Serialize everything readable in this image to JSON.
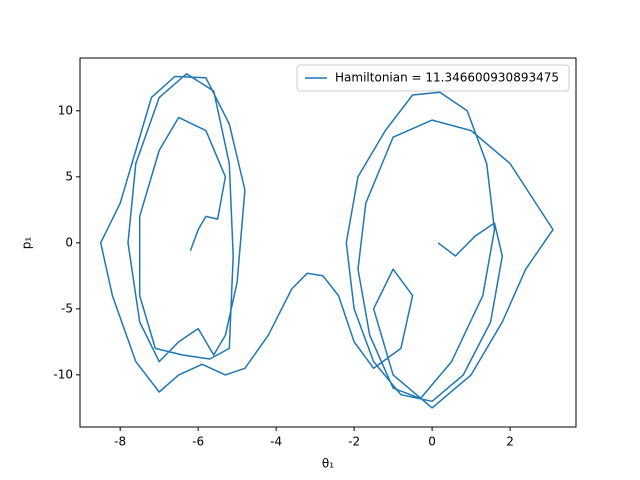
{
  "chart_data": {
    "type": "line",
    "xlabel": "θ₁",
    "ylabel": "p₁",
    "x": [
      0.15,
      0.6,
      1.1,
      1.6,
      1.8,
      1.5,
      0.8,
      0,
      -0.8,
      -1.5,
      -2,
      -2.2,
      -1.9,
      -1.2,
      -0.5,
      0.2,
      0.9,
      1.4,
      1.6,
      1.3,
      0.5,
      -0.3,
      -1,
      -1.6,
      -1.9,
      -1.7,
      -1,
      0,
      1,
      2,
      3.1,
      2.4,
      1.8,
      1,
      0,
      -1,
      -1.5,
      -1,
      -0.5,
      -0.8,
      -1.5,
      -2,
      -2.4,
      -2.8,
      -3.2,
      -3.6,
      -4.2,
      -4.8,
      -5.3,
      -5.9,
      -6.5,
      -7,
      -7.6,
      -8.2,
      -8.5,
      -8,
      -7.6,
      -7.2,
      -6.6,
      -5.8,
      -5.2,
      -4.8,
      -5,
      -5.3,
      -5.6,
      -6,
      -6.5,
      -7,
      -7.5,
      -7.8,
      -7.6,
      -7,
      -6.3,
      -5.6,
      -5.2,
      -5.1,
      -5.2,
      -5.7,
      -6.4,
      -7.1,
      -7.5,
      -7.5,
      -7,
      -6.5,
      -5.8,
      -5.3,
      -5.5,
      -5.8,
      -6,
      -6.2
    ],
    "series": [
      {
        "name": "Hamiltonian = 11.346600930893475",
        "color": "#1f77b4",
        "values": [
          0,
          -1,
          0.5,
          1.5,
          -1,
          -6,
          -10,
          -12,
          -11.5,
          -9,
          -5,
          0,
          5,
          8.5,
          11.2,
          11.4,
          10,
          6,
          1,
          -4,
          -9,
          -11.8,
          -11,
          -7,
          -2,
          3,
          8,
          9.3,
          8.5,
          6,
          1,
          -2,
          -6,
          -10,
          -12.5,
          -10,
          -5,
          -2,
          -4,
          -8,
          -9.5,
          -7.5,
          -4,
          -2.5,
          -2.3,
          -3.5,
          -7,
          -9.5,
          -10,
          -9.2,
          -10,
          -11.3,
          -9,
          -4,
          0,
          3,
          7,
          11,
          12.6,
          12.5,
          9,
          4,
          -3,
          -7,
          -8.5,
          -6.5,
          -7.5,
          -9,
          -6,
          0,
          6,
          11,
          12.8,
          11.5,
          6,
          -1,
          -8,
          -8.8,
          -8.5,
          -8,
          -4,
          2,
          7,
          9.5,
          8.5,
          5,
          1.8,
          2,
          1,
          -0.6
        ]
      }
    ],
    "xlim": [
      -9.03,
      3.69
    ],
    "ylim": [
      -13.95,
      14.0
    ],
    "xticks": [
      -8,
      -6,
      -4,
      -2,
      0,
      2
    ],
    "yticks": [
      -10,
      -5,
      0,
      5,
      10
    ],
    "grid": false,
    "legend": "upper right"
  }
}
